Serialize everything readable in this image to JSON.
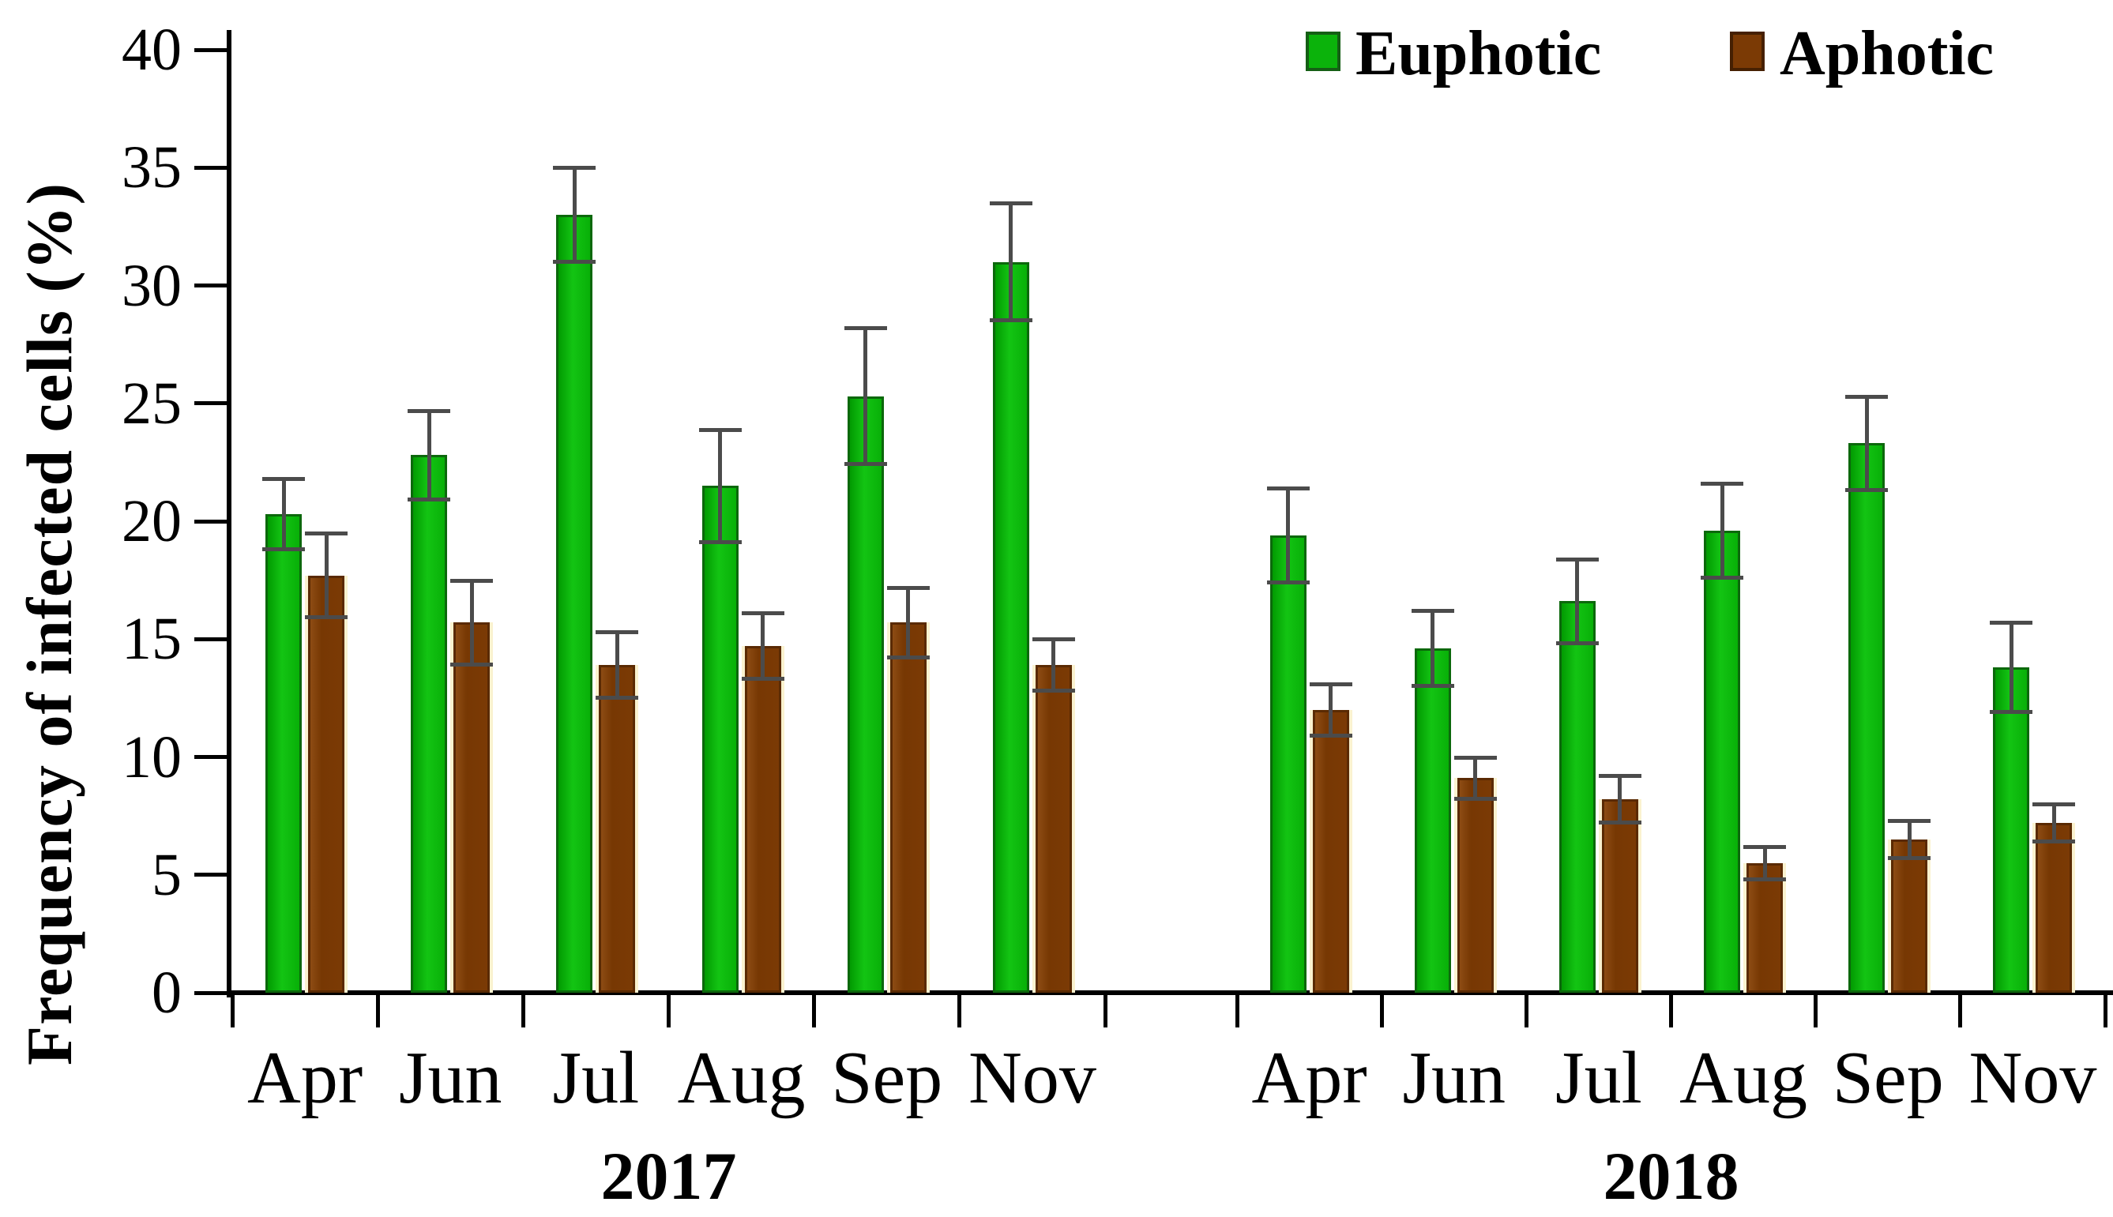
{
  "figure": {
    "background": "#ffffff",
    "colors": {
      "euphotic": "#0bb30b",
      "aphotic": "#7b3a05",
      "error_bar": "#4b4b4b",
      "axis": "#000000"
    }
  },
  "chart_data": {
    "type": "bar",
    "title": "",
    "xlabel": "",
    "ylabel": "Frequency of infected cells (%)",
    "ylim": [
      0,
      40
    ],
    "ytick_step": 5,
    "ytick_labels": [
      "0",
      "5",
      "10",
      "15",
      "20",
      "25",
      "30",
      "35",
      "40"
    ],
    "grid": false,
    "legend_position": "top-right",
    "error_bars": true,
    "group_labels": [
      "2017",
      "2018"
    ],
    "categories": [
      "Apr",
      "Jun",
      "Jul",
      "Aug",
      "Sep",
      "Nov"
    ],
    "series": [
      {
        "name": "Euphotic",
        "color": "#0bb30b",
        "values": {
          "2017": [
            20.3,
            22.8,
            33.0,
            21.5,
            25.3,
            31.0
          ],
          "2018": [
            19.4,
            14.6,
            16.6,
            19.6,
            23.3,
            13.8
          ]
        },
        "errors": {
          "2017": [
            1.5,
            1.9,
            2.0,
            2.4,
            2.9,
            2.5
          ],
          "2018": [
            2.0,
            1.6,
            1.8,
            2.0,
            2.0,
            1.9
          ]
        }
      },
      {
        "name": "Aphotic",
        "color": "#7b3a05",
        "values": {
          "2017": [
            17.7,
            15.7,
            13.9,
            14.7,
            15.7,
            13.9
          ],
          "2018": [
            12.0,
            9.1,
            8.2,
            5.5,
            6.5,
            7.2
          ]
        },
        "errors": {
          "2017": [
            1.8,
            1.8,
            1.4,
            1.4,
            1.5,
            1.1
          ],
          "2018": [
            1.1,
            0.9,
            1.0,
            0.7,
            0.8,
            0.8
          ]
        }
      }
    ]
  }
}
